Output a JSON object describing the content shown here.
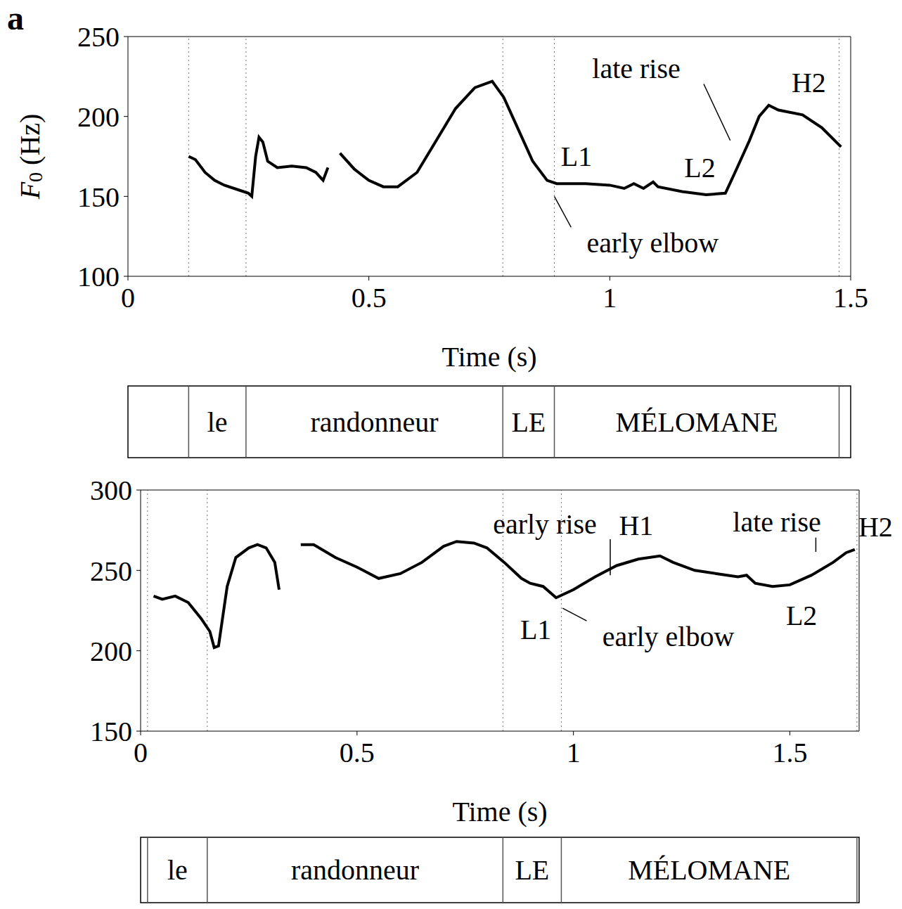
{
  "chart_data": [
    {
      "type": "line",
      "panel": "a",
      "y_label": "F0 (Hz)",
      "x_label": "Time (s)",
      "color": "#000000",
      "grid": false,
      "xlim": [
        0,
        1.5
      ],
      "xticks": [
        0,
        0.5,
        1,
        1.5
      ],
      "ylim": [
        100,
        250
      ],
      "yticks": [
        100,
        150,
        200,
        250
      ],
      "x": [
        0.126,
        0.14,
        0.16,
        0.18,
        0.2,
        0.23,
        0.25,
        0.257,
        0.265,
        0.272,
        0.28,
        0.29,
        0.31,
        0.34,
        0.37,
        0.39,
        0.405,
        0.415,
        0.43,
        0.44,
        0.47,
        0.5,
        0.53,
        0.56,
        0.6,
        0.64,
        0.68,
        0.72,
        0.756,
        0.78,
        0.81,
        0.84,
        0.87,
        0.89,
        0.95,
        1.0,
        1.03,
        1.05,
        1.07,
        1.09,
        1.1,
        1.15,
        1.2,
        1.24,
        1.26,
        1.29,
        1.31,
        1.33,
        1.35,
        1.4,
        1.44,
        1.48
      ],
      "values": [
        175,
        173,
        165,
        160,
        157,
        154,
        152,
        150,
        175,
        187,
        184,
        172,
        168,
        169,
        168,
        165,
        160,
        168,
        null,
        177,
        167,
        160,
        156,
        156,
        165,
        185,
        205,
        218,
        222,
        212,
        192,
        172,
        160,
        158,
        158,
        157,
        155,
        158,
        155,
        159,
        156,
        153,
        151,
        152,
        165,
        185,
        200,
        207,
        204,
        201,
        193,
        181
      ],
      "segments": [
        {
          "label": "le",
          "start": 0.126,
          "end": 0.245
        },
        {
          "label": "randonneur",
          "start": 0.245,
          "end": 0.778
        },
        {
          "label": "LE",
          "start": 0.778,
          "end": 0.885
        },
        {
          "label": "MÉLOMANE",
          "start": 0.885,
          "end": 1.476
        }
      ],
      "annotations": [
        {
          "text": "late rise",
          "x": 1.055,
          "y": 230,
          "xy": [
            1.25,
            185
          ]
        },
        {
          "text": "H2",
          "x": 1.413,
          "y": 221
        },
        {
          "text": "L1",
          "x": 0.931,
          "y": 175
        },
        {
          "text": "L2",
          "x": 1.187,
          "y": 168
        },
        {
          "text": "early elbow",
          "x": 1.089,
          "y": 121,
          "xy": [
            0.885,
            150
          ]
        }
      ]
    },
    {
      "type": "line",
      "x_label": "Time (s)",
      "color": "#000000",
      "grid": false,
      "xlim": [
        0,
        1.66
      ],
      "xticks": [
        0,
        0.5,
        1,
        1.5
      ],
      "ylim": [
        150,
        300
      ],
      "yticks": [
        150,
        200,
        250,
        300
      ],
      "x": [
        0.03,
        0.05,
        0.08,
        0.11,
        0.14,
        0.16,
        0.17,
        0.18,
        0.2,
        0.22,
        0.25,
        0.27,
        0.29,
        0.31,
        0.32,
        0.345,
        0.37,
        0.4,
        0.45,
        0.5,
        0.55,
        0.6,
        0.65,
        0.7,
        0.73,
        0.77,
        0.8,
        0.84,
        0.88,
        0.9,
        0.93,
        0.96,
        1.0,
        1.05,
        1.1,
        1.15,
        1.2,
        1.23,
        1.28,
        1.33,
        1.38,
        1.4,
        1.42,
        1.46,
        1.5,
        1.55,
        1.6,
        1.63,
        1.65
      ],
      "values": [
        234,
        232,
        234,
        230,
        220,
        212,
        202,
        203,
        240,
        258,
        264,
        266,
        264,
        255,
        238,
        null,
        266,
        266,
        258,
        252,
        245,
        248,
        255,
        265,
        268,
        267,
        264,
        255,
        245,
        242,
        240,
        233,
        238,
        246,
        253,
        257,
        259,
        255,
        250,
        248,
        246,
        247,
        242,
        240,
        241,
        247,
        255,
        261,
        263
      ],
      "segments": [
        {
          "label": "le",
          "start": 0.016,
          "end": 0.154
        },
        {
          "label": "randonneur",
          "start": 0.154,
          "end": 0.837
        },
        {
          "label": "LE",
          "start": 0.837,
          "end": 0.972
        },
        {
          "label": "MÉLOMANE",
          "start": 0.972,
          "end": 1.655
        }
      ],
      "annotations": [
        {
          "text": "early rise",
          "x": 0.934,
          "y": 279,
          "xy": [
            1.085,
            247
          ]
        },
        {
          "text": "H1",
          "x": 1.145,
          "y": 278
        },
        {
          "text": "late rise",
          "x": 1.47,
          "y": 280,
          "xy": [
            1.56,
            261.5
          ]
        },
        {
          "text": "H2",
          "x": 1.698,
          "y": 277
        },
        {
          "text": "L1",
          "x": 0.913,
          "y": 213
        },
        {
          "text": "early elbow",
          "x": 1.219,
          "y": 209,
          "xy": [
            0.975,
            226.5
          ]
        },
        {
          "text": "L2",
          "x": 1.527,
          "y": 222
        }
      ]
    }
  ]
}
